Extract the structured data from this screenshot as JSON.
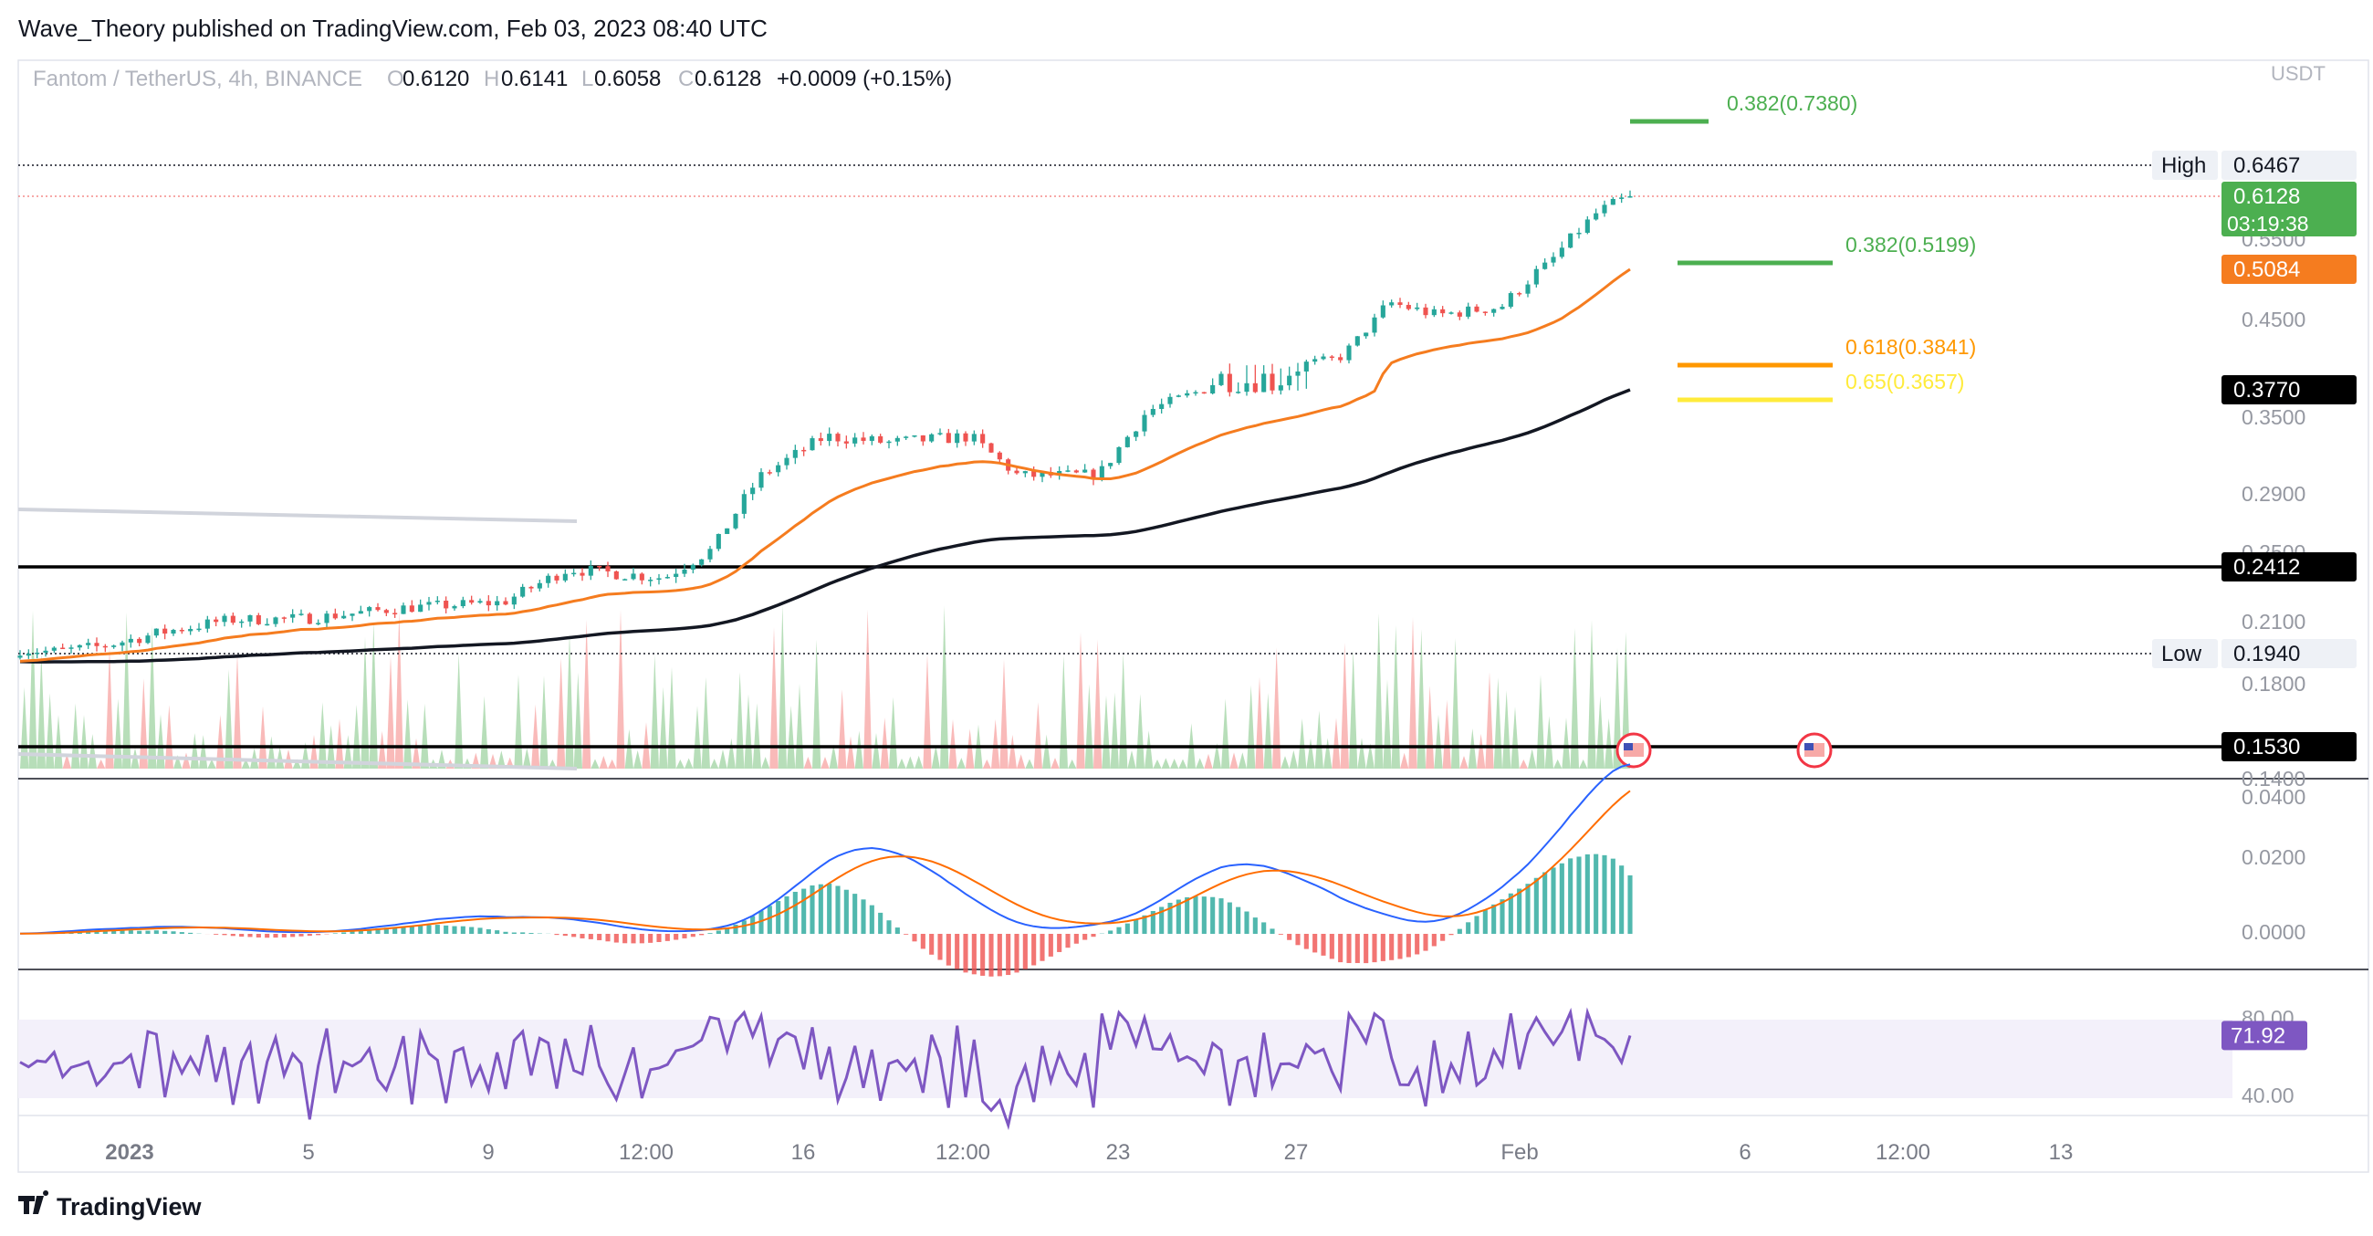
{
  "publish_line": "Wave_Theory published on TradingView.com, Feb 03, 2023 08:40 UTC",
  "brand": "TradingView",
  "colors": {
    "up": "#26a69a",
    "down": "#ef5350",
    "ema_fast": "#f57c1f",
    "ema_slow": "#131722",
    "fib_green": "#4caf50",
    "fib_orange": "#ff9800",
    "fib_yellow": "#ffeb3b",
    "macd_line": "#2962ff",
    "signal_line": "#ff6d00",
    "rsi_line": "#7e57c2",
    "rsi_band": "#f3f0fa"
  },
  "legend": {
    "symbol": "Fantom / TetherUS, 4h, BINANCE",
    "o_label": "O",
    "o_value": "0.6120",
    "h_label": "H",
    "h_value": "0.6141",
    "l_label": "L",
    "l_value": "0.6058",
    "c_label": "C",
    "c_value": "0.6128",
    "change": "+0.0009 (+0.15%)"
  },
  "chart_data": {
    "type": "candlestick",
    "currency": "USDT",
    "price_axis": {
      "ticks": [
        "0.5500",
        "0.4500",
        "0.3500",
        "0.2900",
        "0.2500",
        "0.2100",
        "0.1800",
        "0.1400"
      ]
    },
    "x_axis": {
      "ticks": [
        "2023",
        "5",
        "9",
        "12:00",
        "16",
        "12:00",
        "23",
        "27",
        "Feb",
        "6",
        "12:00",
        "13"
      ]
    },
    "close_path_keypoints": [
      {
        "x": 0,
        "v": 0.196
      },
      {
        "x": 0.02,
        "v": 0.195
      },
      {
        "x": 0.05,
        "v": 0.1975
      },
      {
        "x": 0.09,
        "v": 0.205
      },
      {
        "x": 0.13,
        "v": 0.211
      },
      {
        "x": 0.18,
        "v": 0.212
      },
      {
        "x": 0.24,
        "v": 0.218
      },
      {
        "x": 0.3,
        "v": 0.221
      },
      {
        "x": 0.34,
        "v": 0.24
      },
      {
        "x": 0.4,
        "v": 0.235
      },
      {
        "x": 0.43,
        "v": 0.252
      },
      {
        "x": 0.46,
        "v": 0.304
      },
      {
        "x": 0.5,
        "v": 0.335
      },
      {
        "x": 0.54,
        "v": 0.33
      },
      {
        "x": 0.59,
        "v": 0.335
      },
      {
        "x": 0.62,
        "v": 0.304
      },
      {
        "x": 0.67,
        "v": 0.305
      },
      {
        "x": 0.7,
        "v": 0.355
      },
      {
        "x": 0.74,
        "v": 0.38
      },
      {
        "x": 0.78,
        "v": 0.38
      },
      {
        "x": 0.82,
        "v": 0.395
      },
      {
        "x": 0.85,
        "v": 0.47
      },
      {
        "x": 0.88,
        "v": 0.455
      },
      {
        "x": 0.92,
        "v": 0.465
      },
      {
        "x": 0.95,
        "v": 0.52
      },
      {
        "x": 0.98,
        "v": 0.59
      },
      {
        "x": 1.0,
        "v": 0.6128
      }
    ],
    "ema_fast_last": 0.5084,
    "ema_slow_last": 0.377,
    "high": 0.6467,
    "low": 0.194,
    "last_price": 0.6128,
    "countdown": "03:19:38",
    "horizontal_levels": [
      0.2412,
      0.153
    ],
    "fib_levels": [
      {
        "label": "0.382(0.7380)",
        "value": 0.738,
        "color": "#4caf50"
      },
      {
        "label": "0.382(0.5199)",
        "value": 0.5199,
        "color": "#4caf50"
      },
      {
        "label": "0.618(0.3841)",
        "value": 0.3841,
        "color": "#ff9800"
      },
      {
        "label": "0.65(0.3657)",
        "value": 0.3657,
        "color": "#ffeb3b"
      }
    ],
    "price_badges": [
      {
        "label": "High",
        "value": "0.6467"
      },
      {
        "label": "",
        "value": "0.6128"
      },
      {
        "label": "",
        "value": "0.5084"
      },
      {
        "label": "",
        "value": "0.3770"
      },
      {
        "label": "",
        "value": "0.2412"
      },
      {
        "label": "Low",
        "value": "0.1940"
      },
      {
        "label": "",
        "value": "0.1530"
      }
    ],
    "macd": {
      "ticks": [
        "0.0400",
        "0.0200",
        "0.0000"
      ]
    },
    "rsi": {
      "ticks": [
        "80.00",
        "40.00"
      ],
      "last": "71.92",
      "band": [
        40,
        80
      ]
    }
  }
}
